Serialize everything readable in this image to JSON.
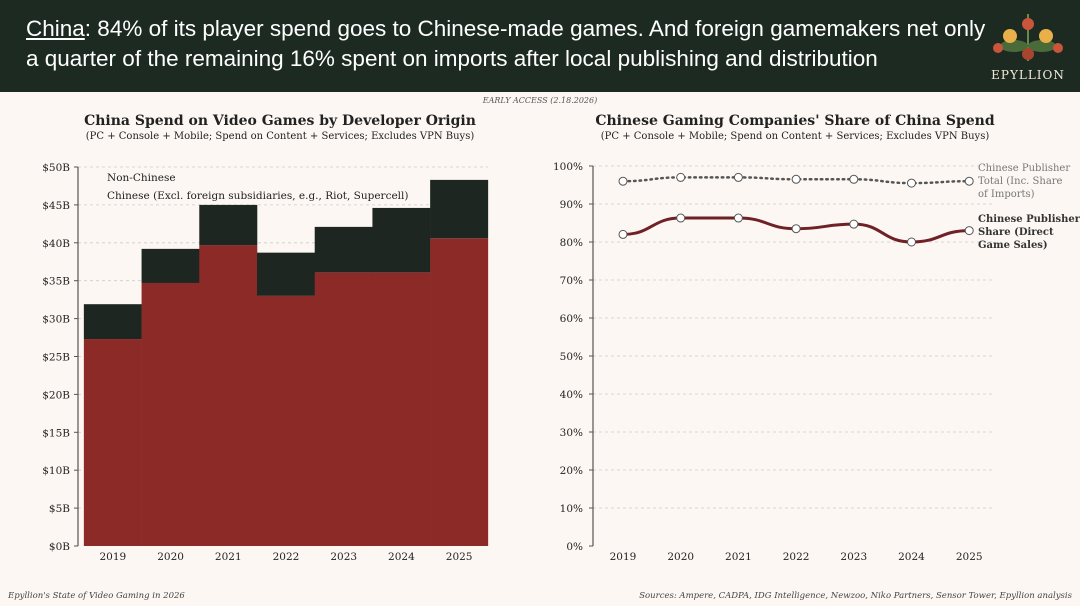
{
  "header": {
    "headline_lead": "China",
    "headline_rest": ": 84% of its player spend goes to Chinese-made games. And foreign gamemakers net only a quarter of the remaining 16% spent on imports after local publishing and distribution",
    "logo_text": "EPYLLION"
  },
  "early_access": "EARLY ACCESS (2.18.2026)",
  "footer": {
    "left": "Epyllion's State of Video Gaming in 2026",
    "right": "Sources: Ampere, CADPA, IDG Intelligence, Newzoo, Niko Partners, Sensor Tower, Epyllion analysis"
  },
  "colors": {
    "header_bg": "#1d2a22",
    "chinese": "#8b2a27",
    "non_chinese": "#1d2620",
    "total_line": "#555555",
    "direct_line": "#6e2126"
  },
  "chart_data": [
    {
      "type": "bar",
      "stacked": true,
      "title": "China Spend on Video Games by Developer Origin",
      "subtitle": "(PC + Console + Mobile; Spend on Content + Services; Excludes VPN Buys)",
      "categories": [
        "2019",
        "2020",
        "2021",
        "2022",
        "2023",
        "2024",
        "2025"
      ],
      "yticks": [
        "$0B",
        "$5B",
        "$10B",
        "$15B",
        "$20B",
        "$25B",
        "$30B",
        "$35B",
        "$40B",
        "$45B",
        "$50B"
      ],
      "ylim": [
        0,
        50
      ],
      "grid": true,
      "legend_placement": "top-left",
      "series": [
        {
          "name": "Chinese (Excl. foreign subsidiaries, e.g., Riot, Supercell)",
          "values": [
            27.3,
            34.7,
            39.7,
            33.0,
            36.1,
            36.1,
            40.6
          ]
        },
        {
          "name": "Non-Chinese",
          "values": [
            4.6,
            4.5,
            5.3,
            5.7,
            6.0,
            8.5,
            7.7
          ]
        }
      ]
    },
    {
      "type": "line",
      "title": "Chinese Gaming Companies' Share of China Spend",
      "subtitle": "(PC + Console + Mobile; Spend on Content + Services; Excludes VPN Buys)",
      "categories": [
        "2019",
        "2020",
        "2021",
        "2022",
        "2023",
        "2024",
        "2025"
      ],
      "yticks": [
        "0%",
        "10%",
        "20%",
        "30%",
        "40%",
        "50%",
        "60%",
        "70%",
        "80%",
        "90%",
        "100%"
      ],
      "ylim": [
        0,
        100
      ],
      "grid": true,
      "series": [
        {
          "name": "Chinese Publisher Total (Inc. Share of Imports)",
          "values": [
            96,
            97,
            97,
            96.5,
            96.5,
            95.5,
            96
          ],
          "style": "dotted"
        },
        {
          "name": "Chinese Publisher Share (Direct Game Sales)",
          "values": [
            82,
            86.3,
            86.3,
            83.5,
            84.7,
            80,
            83
          ],
          "style": "solid"
        }
      ]
    }
  ]
}
